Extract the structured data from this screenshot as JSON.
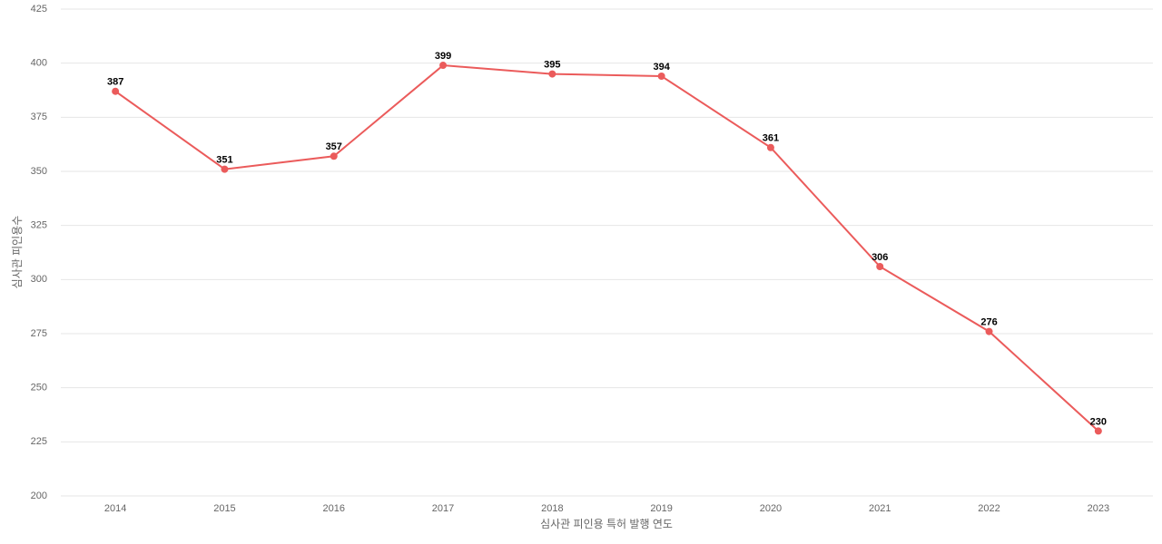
{
  "chart_data": {
    "type": "line",
    "x_label": "심사관 피인용 특허 발행 연도",
    "y_label": "심사관 피인용수",
    "categories": [
      "2014",
      "2015",
      "2016",
      "2017",
      "2018",
      "2019",
      "2020",
      "2021",
      "2022",
      "2023"
    ],
    "series": [
      {
        "name": "심사관 피인용수",
        "color": "#eb5b5b",
        "values": [
          387,
          351,
          357,
          399,
          395,
          394,
          361,
          306,
          276,
          230
        ]
      }
    ],
    "ylim": [
      200,
      425
    ],
    "yticks": [
      200,
      225,
      250,
      275,
      300,
      325,
      350,
      375,
      400,
      425
    ],
    "grid": true
  }
}
